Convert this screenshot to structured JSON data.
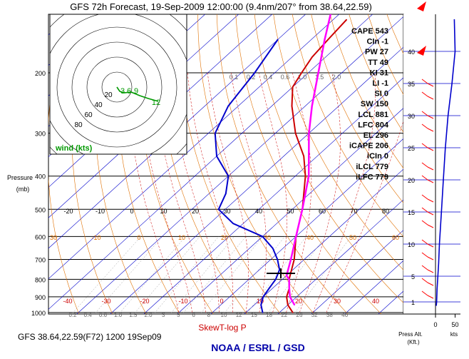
{
  "header": {
    "title": "GFS 72h Forecast, 19-Sep-2009 12:00:00 (9.4nm/207° from 38.64,22.59)"
  },
  "footer": {
    "model_line": "GFS 38.64,22.59(F72) 1200 19Sep09",
    "chart_name": "SkewT-log P",
    "org": "NOAA / ESRL / GSD"
  },
  "colors": {
    "isobar": "#000000",
    "isotherm": "#0000cc",
    "dry_adiabat": "#e07000",
    "moist_adiabat": "#cc0000",
    "mixing_ratio": "#999999",
    "temperature": "#cc0000",
    "dewpoint": "#0000cc",
    "parcel": "#ff00ff",
    "wind_barb": "#ff0000",
    "hodograph": "#009900",
    "org_text": "#0000aa",
    "chart_name_text": "#cc0000"
  },
  "indices": [
    "CAPE 543",
    "CIn -1",
    "PW 27",
    "TT 49",
    "KI 31",
    "LI -1",
    "SI 0",
    "SW 150",
    "LCL 881",
    "LFC 804",
    "EL 296",
    "iCAPE 206",
    "iCIn 0",
    "iLCL 779",
    "iLFC 779"
  ],
  "chart_data": [
    {
      "type": "line",
      "name": "skewt",
      "title": "SkewT-log P",
      "ylabel": "Pressure (mb)",
      "pressure_ticks": [
        200,
        300,
        400,
        500,
        600,
        700,
        800,
        900,
        1000
      ],
      "upper_temp_ticks": [
        -20,
        -10,
        0,
        10,
        20,
        30,
        40,
        50,
        60,
        70,
        80
      ],
      "lower_temp_ticks": [
        -40,
        -30,
        -20,
        -10,
        0,
        10,
        20,
        30,
        40
      ],
      "dry_adiabat_labels": [
        30,
        -10,
        0,
        10,
        20,
        30,
        40,
        50,
        60
      ],
      "mixing_ratio_top_labels": [
        "0.1",
        "0.2",
        "0.4",
        "0.6",
        "1.0",
        "1.5",
        "2.0"
      ],
      "mixing_ratio_bottom_labels": [
        "0.2",
        "0.4",
        "0.6",
        "1.0",
        "1.5",
        "2.0",
        "3",
        "5",
        "6",
        "8",
        "10",
        "12",
        "15",
        "18",
        "22",
        "26",
        "32",
        "38",
        "46"
      ],
      "series": [
        {
          "name": "temperature",
          "pressure": [
            1000,
            950,
            900,
            850,
            800,
            700,
            600,
            500,
            400,
            350,
            300,
            250,
            220,
            200,
            180,
            160,
            140
          ],
          "temp_c": [
            24,
            20,
            17,
            15,
            12,
            7,
            0,
            -7,
            -17,
            -24,
            -34,
            -44,
            -50,
            -52,
            -54,
            -55,
            -56
          ]
        },
        {
          "name": "dewpoint",
          "pressure": [
            1000,
            950,
            900,
            850,
            800,
            750,
            700,
            650,
            600,
            550,
            500,
            450,
            400,
            350,
            300,
            250,
            200,
            160
          ],
          "temp_c": [
            15,
            12,
            10,
            9,
            8,
            6,
            2,
            -3,
            -10,
            -23,
            -32,
            -35,
            -40,
            -50,
            -58,
            -63,
            -66,
            -70
          ]
        },
        {
          "name": "parcel",
          "pressure": [
            950,
            900,
            850,
            800,
            780,
            700,
            600,
            500,
            400,
            300,
            250,
            200,
            160,
            130
          ],
          "temp_c": [
            22,
            18,
            15,
            12,
            10,
            6,
            0,
            -7,
            -16,
            -30,
            -38,
            -47,
            -56,
            -64
          ]
        }
      ]
    },
    {
      "type": "scatter",
      "name": "hodograph",
      "title": "wind (kts)",
      "ring_labels": [
        20,
        40,
        60,
        80
      ],
      "height_labels": [
        "3",
        "6",
        "9",
        "12"
      ]
    },
    {
      "type": "line",
      "name": "wind_profile",
      "xlabel": "kts",
      "ylabel": "Press Alt. (Kft.)",
      "x_ticks": [
        0,
        50
      ],
      "alt_ticks": [
        1,
        5,
        10,
        15,
        20,
        25,
        30,
        35,
        40
      ],
      "alt_kft": [
        0.4,
        1,
        3,
        5,
        7,
        10,
        15,
        20,
        25,
        30,
        35,
        40,
        45
      ],
      "speed_kts": [
        2,
        3,
        4,
        6,
        8,
        10,
        15,
        20,
        25,
        32,
        42,
        50,
        48
      ]
    }
  ]
}
